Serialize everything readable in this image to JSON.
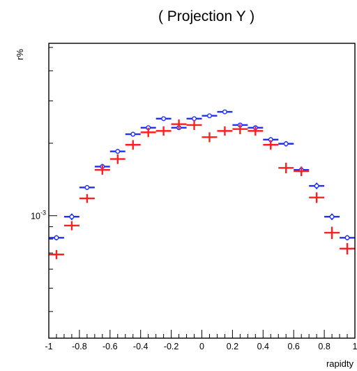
{
  "chart_data": {
    "type": "scatter",
    "title": "( Projection Y )",
    "xlabel": "rapidty",
    "ylabel": "r%",
    "xlim": [
      -1,
      1
    ],
    "ylim": [
      0.00031,
      0.0052
    ],
    "y_log_scale": true,
    "x_tick_labels": [
      "-1",
      "-0.8",
      "-0.6",
      "-0.4",
      "-0.2",
      "0",
      "0.2",
      "0.4",
      "0.6",
      "0.8",
      "1"
    ],
    "y_tick_labels": [
      {
        "base": "10",
        "exponent": "-3",
        "value": 0.001
      }
    ],
    "grid": false,
    "legend": null,
    "x": [
      -0.95,
      -0.85,
      -0.75,
      -0.65,
      -0.55,
      -0.45,
      -0.35,
      -0.25,
      -0.15,
      -0.05,
      0.05,
      0.15,
      0.25,
      0.35,
      0.45,
      0.55,
      0.65,
      0.75,
      0.85,
      0.95
    ],
    "bin_halfwidth": 0.05,
    "series": [
      {
        "marker": "open-circle",
        "color": "#1f2fff",
        "values": [
          0.00081,
          0.00099,
          0.00131,
          0.0016,
          0.00185,
          0.00218,
          0.00232,
          0.00253,
          0.00232,
          0.00253,
          0.0026,
          0.0027,
          0.00238,
          0.00232,
          0.00207,
          0.00199,
          0.00155,
          0.00133,
          0.00099,
          0.00081
        ],
        "errors": [
          2e-05,
          3e-05,
          3e-05,
          4e-05,
          4e-05,
          5e-05,
          5e-05,
          5e-05,
          5e-05,
          5e-05,
          5e-05,
          5e-05,
          5e-05,
          5e-05,
          5e-05,
          5e-05,
          4e-05,
          4e-05,
          3e-05,
          2e-05
        ]
      },
      {
        "marker": "cross",
        "color": "#ff1f1f",
        "values": [
          0.00069,
          0.00091,
          0.00118,
          0.00155,
          0.00172,
          0.00197,
          0.00222,
          0.00225,
          0.0024,
          0.00238,
          0.00212,
          0.00225,
          0.00229,
          0.00225,
          0.00197,
          0.00158,
          0.00153,
          0.00119,
          0.00085,
          0.00073
        ],
        "errors": [
          3e-05,
          4e-05,
          5e-05,
          7e-05,
          8e-05,
          9e-05,
          0.0001,
          0.0001,
          0.00011,
          0.00011,
          0.0001,
          0.0001,
          0.00011,
          0.0001,
          9e-05,
          8e-05,
          7e-05,
          6e-05,
          5e-05,
          4e-05
        ]
      }
    ]
  }
}
